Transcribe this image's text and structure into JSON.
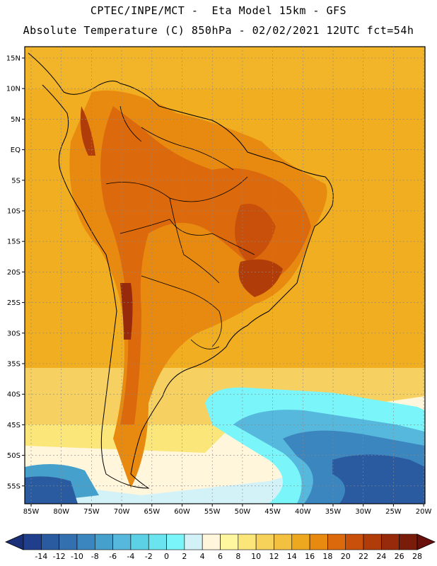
{
  "header": {
    "line1": "CPTEC/INPE/MCT -  Eta Model 15km - GFS",
    "line2": "Absolute Temperature (C) 850hPa - 02/02/2021 12UTC fct=54h"
  },
  "axes": {
    "lat_labels": [
      "15N",
      "10N",
      "5N",
      "EQ",
      "5S",
      "10S",
      "15S",
      "20S",
      "25S",
      "30S",
      "35S",
      "40S",
      "45S",
      "50S",
      "55S"
    ],
    "lon_labels": [
      "85W",
      "80W",
      "75W",
      "70W",
      "65W",
      "60W",
      "55W",
      "50W",
      "45W",
      "40W",
      "35W",
      "30W",
      "25W",
      "20W"
    ]
  },
  "colorbar": {
    "ticks": [
      "-14",
      "-12",
      "-10",
      "-8",
      "-6",
      "-4",
      "-2",
      "0",
      "2",
      "4",
      "6",
      "8",
      "10",
      "12",
      "14",
      "16",
      "18",
      "20",
      "22",
      "24",
      "26",
      "28"
    ],
    "colors": [
      "#1f3f8c",
      "#2a5aa0",
      "#3370b0",
      "#3c86c0",
      "#46a0cc",
      "#55b8dc",
      "#5cd0e4",
      "#6ae4ee",
      "#7af6fa",
      "#d2f2f8",
      "#fff6dc",
      "#fff6a0",
      "#fbe67a",
      "#f6d25a",
      "#f3c040",
      "#eea820",
      "#e88a10",
      "#dc6a0c",
      "#c8500a",
      "#b03c0a",
      "#962a0a",
      "#7a1c0a"
    ],
    "under_color": "#1a2f78",
    "over_color": "#6a100c"
  }
}
